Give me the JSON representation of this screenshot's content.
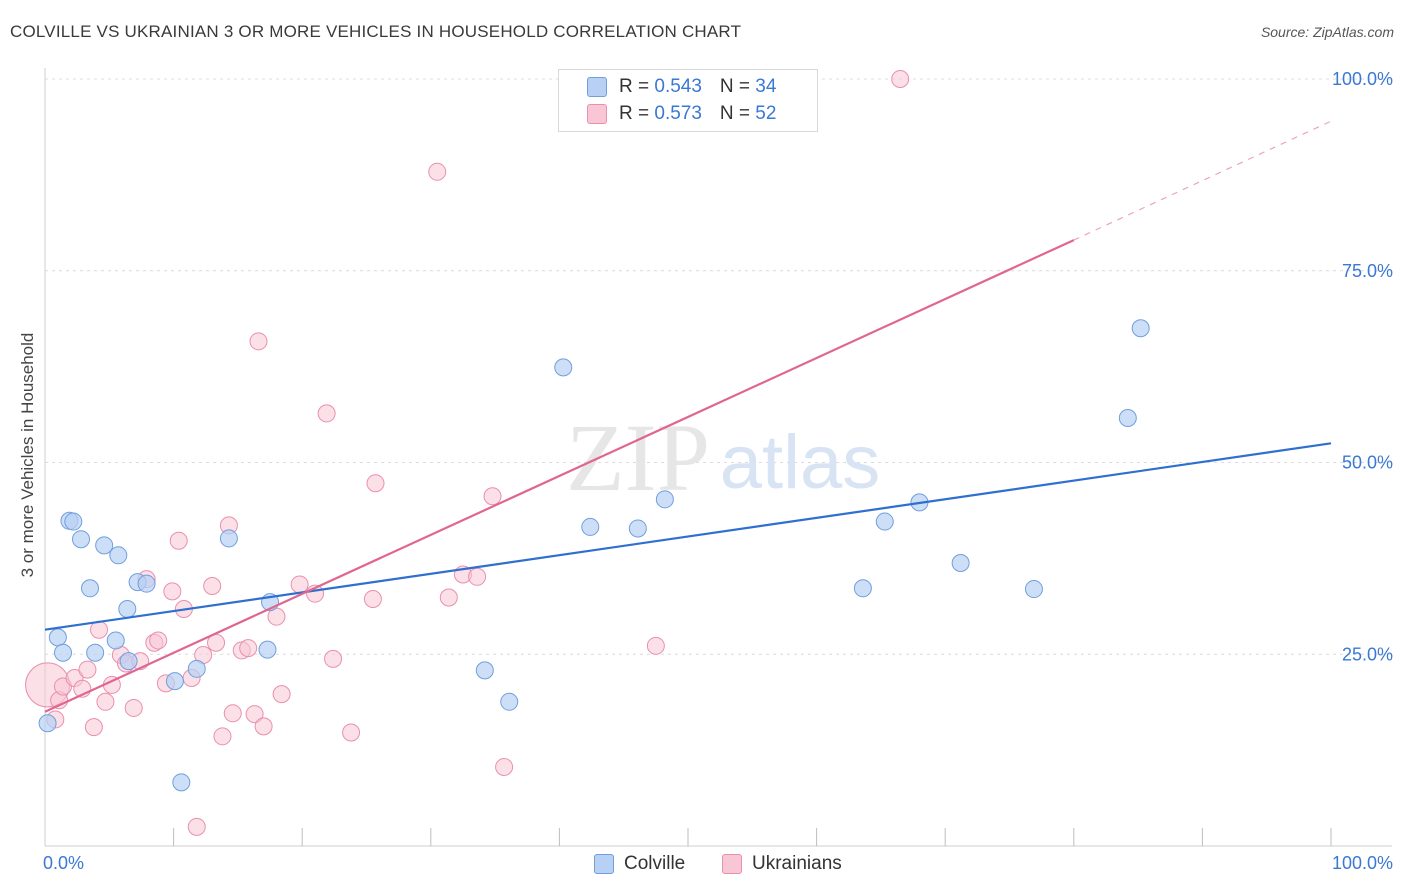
{
  "header": {
    "title": "COLVILLE VS UKRAINIAN 3 OR MORE VEHICLES IN HOUSEHOLD CORRELATION CHART",
    "source": "Source: ZipAtlas.com"
  },
  "watermark": {
    "zip": "ZIP",
    "atlas": "atlas"
  },
  "legend": {
    "colville": {
      "r_label": "R = ",
      "r_value": "0.543",
      "n_label": "N = ",
      "n_value": "34"
    },
    "ukrainians": {
      "r_label": "R = ",
      "r_value": "0.573",
      "n_label": "N = ",
      "n_value": "52"
    }
  },
  "bottom_legend": {
    "colville": "Colville",
    "ukrainians": "Ukrainians"
  },
  "colors": {
    "colville_fill": "#b8d0f3",
    "colville_stroke": "#6f9fde",
    "colville_line": "#2f6fd0",
    "ukrainian_fill": "#f8c6d5",
    "ukrainian_stroke": "#ea8fae",
    "ukrainian_line": "#e0668f",
    "axis_text": "#3a78d4",
    "grid": "#dcdcdc"
  },
  "chart_data": {
    "type": "scatter",
    "title": "COLVILLE VS UKRAINIAN 3 OR MORE VEHICLES IN HOUSEHOLD CORRELATION CHART",
    "xlabel": "",
    "ylabel": "3 or more Vehicles in Household",
    "xlim": [
      0,
      100
    ],
    "ylim": [
      0,
      100
    ],
    "x_tick_labels": [
      "0.0%",
      "100.0%"
    ],
    "y_ticks": [
      25,
      50,
      75,
      100
    ],
    "y_tick_labels": [
      "25.0%",
      "50.0%",
      "75.0%",
      "100.0%"
    ],
    "grid": true,
    "series": [
      {
        "name": "Colville",
        "points": [
          [
            0.2,
            16.0
          ],
          [
            1.0,
            27.2
          ],
          [
            1.4,
            25.2
          ],
          [
            1.9,
            42.4
          ],
          [
            2.2,
            42.3
          ],
          [
            2.8,
            40.0
          ],
          [
            3.5,
            33.6
          ],
          [
            3.9,
            25.2
          ],
          [
            4.6,
            39.2
          ],
          [
            5.5,
            26.8
          ],
          [
            5.7,
            37.9
          ],
          [
            6.4,
            30.9
          ],
          [
            7.2,
            34.4
          ],
          [
            7.9,
            34.2
          ],
          [
            10.1,
            21.5
          ],
          [
            10.6,
            8.3
          ],
          [
            11.8,
            23.1
          ],
          [
            14.3,
            40.1
          ],
          [
            17.3,
            25.6
          ],
          [
            17.5,
            31.8
          ],
          [
            34.2,
            22.9
          ],
          [
            36.1,
            18.8
          ],
          [
            40.3,
            62.4
          ],
          [
            42.4,
            41.6
          ],
          [
            46.1,
            41.4
          ],
          [
            48.2,
            45.2
          ],
          [
            63.6,
            33.6
          ],
          [
            65.3,
            42.3
          ],
          [
            68.0,
            44.8
          ],
          [
            71.2,
            36.9
          ],
          [
            76.9,
            33.5
          ],
          [
            84.2,
            55.8
          ],
          [
            85.2,
            67.5
          ],
          [
            6.5,
            24.1
          ]
        ],
        "trend": {
          "x0": 0,
          "y0": 28.2,
          "x1": 100,
          "y1": 52.5
        }
      },
      {
        "name": "Ukrainians",
        "points": [
          [
            0.2,
            21.0
          ],
          [
            0.8,
            16.5
          ],
          [
            1.1,
            19.0
          ],
          [
            1.4,
            20.8
          ],
          [
            2.3,
            21.9
          ],
          [
            2.9,
            20.5
          ],
          [
            3.3,
            23.0
          ],
          [
            3.8,
            15.5
          ],
          [
            4.2,
            28.2
          ],
          [
            4.7,
            18.8
          ],
          [
            5.2,
            21.0
          ],
          [
            5.9,
            24.9
          ],
          [
            6.3,
            23.8
          ],
          [
            6.9,
            18.0
          ],
          [
            7.4,
            24.1
          ],
          [
            7.9,
            34.8
          ],
          [
            8.5,
            26.5
          ],
          [
            8.8,
            26.8
          ],
          [
            9.4,
            21.2
          ],
          [
            9.9,
            33.2
          ],
          [
            10.4,
            39.8
          ],
          [
            10.8,
            30.9
          ],
          [
            11.4,
            21.9
          ],
          [
            11.8,
            2.5
          ],
          [
            12.3,
            24.9
          ],
          [
            13.0,
            33.9
          ],
          [
            13.3,
            26.5
          ],
          [
            13.8,
            14.3
          ],
          [
            14.3,
            41.8
          ],
          [
            14.6,
            17.3
          ],
          [
            15.3,
            25.5
          ],
          [
            15.8,
            25.8
          ],
          [
            16.3,
            17.2
          ],
          [
            16.6,
            65.8
          ],
          [
            17.0,
            15.6
          ],
          [
            18.0,
            29.9
          ],
          [
            18.4,
            19.8
          ],
          [
            19.8,
            34.1
          ],
          [
            21.0,
            32.9
          ],
          [
            21.9,
            56.4
          ],
          [
            22.4,
            24.4
          ],
          [
            23.8,
            14.8
          ],
          [
            25.5,
            32.2
          ],
          [
            25.7,
            47.3
          ],
          [
            30.5,
            87.9
          ],
          [
            31.4,
            32.4
          ],
          [
            32.5,
            35.4
          ],
          [
            33.6,
            35.1
          ],
          [
            34.8,
            45.6
          ],
          [
            35.7,
            10.3
          ],
          [
            47.5,
            26.1
          ],
          [
            66.5,
            100.0
          ]
        ],
        "trend": {
          "x0": 0,
          "y0": 17.5,
          "x1": 80,
          "y1": 79.0,
          "dash_x1": 100,
          "dash_y1": 94.5
        }
      }
    ]
  }
}
